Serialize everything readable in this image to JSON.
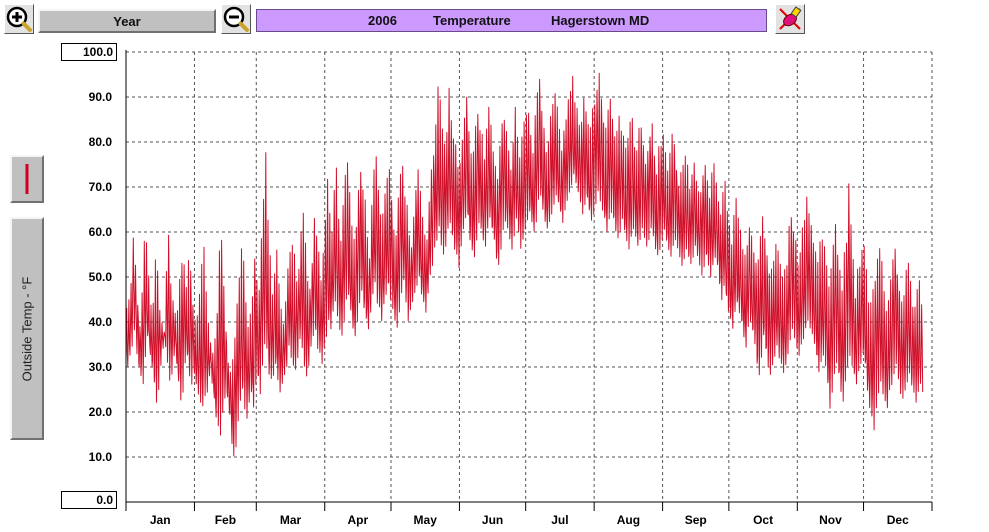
{
  "toolbar": {
    "zoom_in_icon": "magnifier-plus-icon",
    "zoom_out_icon": "magnifier-minus-icon",
    "period_label": "Year",
    "tool_icon": "paint-tool-icon"
  },
  "header": {
    "year": "2006",
    "variable": "Temperature",
    "location": "Hagerstown MD",
    "background_color": "#cc99ff"
  },
  "side_panel": {
    "legend_swatch_color": "#d00020",
    "ylabel": "Outside Temp - °F"
  },
  "chart_data": {
    "type": "line",
    "title": "2006 Temperature Hagerstown MD",
    "ylabel": "Outside Temp - °F",
    "xlabel": "",
    "ylim": [
      0,
      100
    ],
    "xlim_days": [
      0,
      365
    ],
    "yticks": [
      "100.0",
      "90.0",
      "80.0",
      "70.0",
      "60.0",
      "50.0",
      "40.0",
      "30.0",
      "20.0",
      "10.0",
      "0.0"
    ],
    "months": [
      "Jan",
      "Feb",
      "Mar",
      "Apr",
      "May",
      "Jun",
      "Jul",
      "Aug",
      "Sep",
      "Oct",
      "Nov",
      "Dec"
    ],
    "grid": true,
    "series": [
      {
        "color": "#d0102a",
        "daily_high": [
          44,
          46,
          50,
          62,
          55,
          46,
          40,
          48,
          58,
          60,
          52,
          44,
          46,
          58,
          54,
          44,
          40,
          38,
          52,
          60,
          52,
          46,
          42,
          44,
          50,
          54,
          56,
          48,
          58,
          52,
          46,
          42,
          44,
          50,
          56,
          58,
          48,
          40,
          36,
          34,
          38,
          44,
          56,
          60,
          48,
          40,
          32,
          30,
          34,
          40,
          46,
          52,
          58,
          54,
          48,
          40,
          44,
          50,
          56,
          52,
          48,
          62,
          70,
          78,
          66,
          56,
          48,
          52,
          58,
          50,
          44,
          40,
          46,
          52,
          56,
          60,
          58,
          50,
          54,
          62,
          66,
          60,
          52,
          48,
          56,
          64,
          62,
          58,
          52,
          58,
          66,
          72,
          68,
          62,
          70,
          76,
          66,
          60,
          68,
          74,
          78,
          72,
          64,
          60,
          62,
          70,
          76,
          72,
          68,
          60,
          56,
          66,
          74,
          80,
          74,
          68,
          64,
          70,
          74,
          76,
          70,
          64,
          60,
          68,
          76,
          78,
          72,
          66,
          60,
          58,
          64,
          70,
          76,
          72,
          66,
          62,
          60,
          68,
          74,
          80,
          86,
          94,
          90,
          84,
          80,
          86,
          92,
          88,
          84,
          80,
          76,
          78,
          84,
          88,
          92,
          86,
          80,
          78,
          84,
          90,
          86,
          82,
          78,
          84,
          88,
          84,
          80,
          76,
          74,
          80,
          86,
          88,
          84,
          80,
          76,
          82,
          88,
          84,
          80,
          82,
          86,
          90,
          88,
          84,
          80,
          86,
          92,
          94,
          88,
          84,
          80,
          82,
          86,
          90,
          92,
          88,
          84,
          80,
          84,
          88,
          90,
          94,
          96,
          92,
          88,
          84,
          86,
          90,
          88,
          84,
          86,
          90,
          92,
          94,
          96,
          92,
          88,
          84,
          88,
          90,
          86,
          82,
          84,
          88,
          86,
          82,
          80,
          84,
          88,
          86,
          82,
          80,
          84,
          86,
          82,
          78,
          80,
          84,
          86,
          80,
          76,
          80,
          82,
          84,
          80,
          76,
          78,
          82,
          80,
          76,
          72,
          74,
          78,
          80,
          76,
          72,
          76,
          78,
          74,
          70,
          72,
          74,
          76,
          72,
          70,
          74,
          78,
          72,
          68,
          64,
          70,
          72,
          66,
          62,
          60,
          64,
          68,
          66,
          62,
          58,
          56,
          60,
          64,
          62,
          58,
          54,
          56,
          60,
          64,
          62,
          58,
          54,
          52,
          56,
          60,
          58,
          54,
          50,
          54,
          56,
          62,
          66,
          64,
          60,
          56,
          58,
          62,
          66,
          70,
          68,
          64,
          60,
          58,
          56,
          60,
          62,
          58,
          54,
          52,
          56,
          60,
          62,
          58,
          54,
          50,
          56,
          60,
          72,
          64,
          58,
          48,
          52,
          56,
          60,
          58,
          52,
          48,
          46,
          50,
          54,
          58,
          60,
          56,
          50,
          46,
          48,
          52,
          56,
          58,
          54,
          50,
          46,
          48,
          52,
          54,
          50,
          46,
          44,
          48,
          50,
          46
        ],
        "daily_low": [
          30,
          32,
          34,
          38,
          36,
          30,
          28,
          26,
          32,
          36,
          34,
          30,
          26,
          22,
          24,
          30,
          34,
          36,
          30,
          26,
          28,
          32,
          34,
          26,
          22,
          24,
          30,
          32,
          28,
          26,
          30,
          26,
          24,
          22,
          20,
          22,
          24,
          28,
          30,
          24,
          18,
          16,
          14,
          18,
          22,
          24,
          20,
          16,
          9,
          12,
          18,
          22,
          24,
          20,
          18,
          22,
          24,
          20,
          26,
          28,
          24,
          30,
          34,
          32,
          28,
          26,
          28,
          30,
          26,
          24,
          26,
          28,
          30,
          34,
          32,
          30,
          28,
          32,
          36,
          34,
          30,
          28,
          30,
          34,
          36,
          38,
          34,
          32,
          30,
          34,
          36,
          40,
          38,
          42,
          44,
          40,
          38,
          36,
          40,
          44,
          46,
          42,
          38,
          36,
          40,
          44,
          46,
          42,
          40,
          38,
          42,
          46,
          48,
          44,
          42,
          40,
          44,
          46,
          48,
          44,
          42,
          40,
          38,
          42,
          46,
          48,
          44,
          40,
          42,
          44,
          46,
          48,
          50,
          46,
          44,
          42,
          46,
          50,
          52,
          56,
          58,
          60,
          56,
          54,
          56,
          60,
          62,
          58,
          56,
          54,
          52,
          56,
          60,
          62,
          64,
          58,
          56,
          54,
          58,
          62,
          60,
          58,
          56,
          60,
          62,
          60,
          58,
          54,
          52,
          56,
          60,
          62,
          60,
          58,
          56,
          58,
          62,
          60,
          56,
          58,
          60,
          62,
          64,
          62,
          60,
          62,
          66,
          68,
          64,
          62,
          60,
          62,
          64,
          66,
          68,
          66,
          64,
          62,
          64,
          66,
          68,
          70,
          72,
          70,
          68,
          66,
          64,
          66,
          68,
          64,
          62,
          64,
          66,
          68,
          66,
          64,
          62,
          60,
          62,
          64,
          62,
          60,
          58,
          60,
          62,
          60,
          58,
          56,
          58,
          60,
          58,
          56,
          58,
          60,
          58,
          56,
          58,
          60,
          58,
          56,
          54,
          56,
          58,
          60,
          58,
          56,
          54,
          56,
          58,
          56,
          54,
          52,
          54,
          56,
          54,
          52,
          54,
          56,
          54,
          52,
          50,
          52,
          54,
          52,
          50,
          52,
          54,
          52,
          48,
          44,
          48,
          46,
          42,
          40,
          38,
          42,
          44,
          42,
          40,
          36,
          34,
          38,
          40,
          38,
          34,
          30,
          28,
          32,
          36,
          34,
          30,
          28,
          30,
          32,
          34,
          32,
          30,
          28,
          30,
          32,
          36,
          38,
          36,
          34,
          32,
          34,
          36,
          38,
          40,
          38,
          36,
          34,
          32,
          28,
          30,
          32,
          30,
          26,
          20,
          24,
          28,
          30,
          28,
          24,
          22,
          26,
          30,
          32,
          30,
          28,
          26,
          28,
          30,
          32,
          30,
          24,
          20,
          18,
          16,
          20,
          24,
          26,
          24,
          22,
          20,
          24,
          26,
          28,
          30,
          26,
          24,
          22,
          24,
          26,
          28,
          26,
          24,
          22,
          24,
          26,
          24
        ]
      }
    ]
  }
}
